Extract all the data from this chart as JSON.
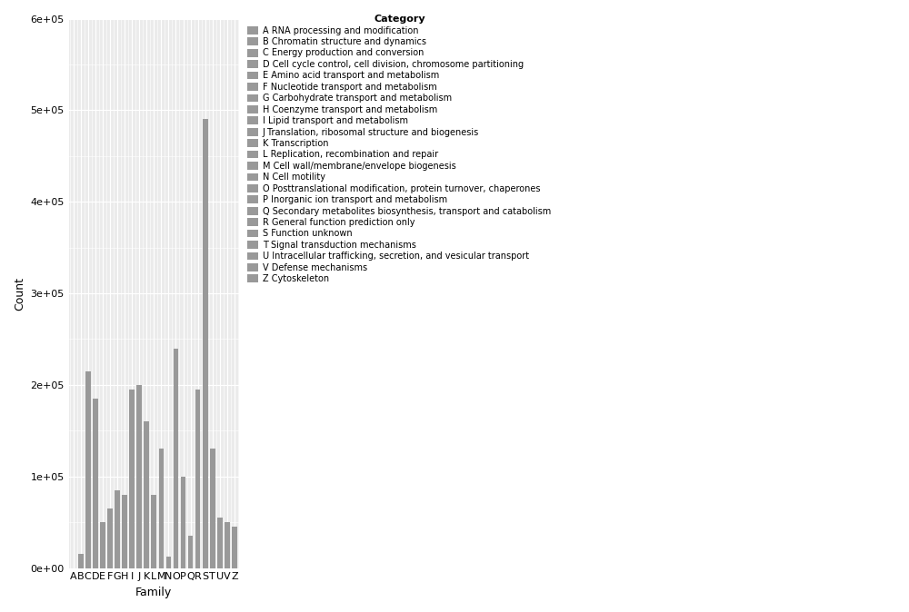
{
  "categories": [
    "A",
    "B",
    "C",
    "D",
    "E",
    "F",
    "G",
    "H",
    "I",
    "J",
    "K",
    "L",
    "M",
    "N",
    "O",
    "P",
    "Q",
    "R",
    "S",
    "T",
    "U",
    "V",
    "Z"
  ],
  "values": [
    0,
    15000,
    215000,
    185000,
    50000,
    65000,
    85000,
    80000,
    195000,
    200000,
    160000,
    80000,
    130000,
    12000,
    240000,
    100000,
    35000,
    195000,
    490000,
    130000,
    55000,
    50000,
    45000
  ],
  "bar_color": "#999999",
  "xlabel": "Family",
  "ylabel": "Count",
  "ylim": [
    0,
    600000
  ],
  "yticks": [
    0,
    100000,
    200000,
    300000,
    400000,
    500000,
    600000
  ],
  "ytick_labels": [
    "0e+00",
    "1e+05",
    "2e+05",
    "3e+05",
    "4e+05",
    "5e+05",
    "6e+05"
  ],
  "legend_title": "Category",
  "legend_entries": [
    "A RNA processing and modification",
    "B Chromatin structure and dynamics",
    "C Energy production and conversion",
    "D Cell cycle control, cell division, chromosome partitioning",
    "E Amino acid transport and metabolism",
    "F Nucleotide transport and metabolism",
    "G Carbohydrate transport and metabolism",
    "H Coenzyme transport and metabolism",
    "I Lipid transport and metabolism",
    "J Translation, ribosomal structure and biogenesis",
    "K Transcription",
    "L Replication, recombination and repair",
    "M Cell wall/membrane/envelope biogenesis",
    "N Cell motility",
    "O Posttranslational modification, protein turnover, chaperones",
    "P Inorganic ion transport and metabolism",
    "Q Secondary metabolites biosynthesis, transport and catabolism",
    "R General function prediction only",
    "S Function unknown",
    "T Signal transduction mechanisms",
    "U Intracellular trafficking, secretion, and vesicular transport",
    "V Defense mechanisms",
    "Z Cytoskeleton"
  ],
  "background_color": "#ffffff",
  "panel_bg_color": "#ebebeb",
  "grid_color": "#ffffff",
  "axis_fontsize": 8,
  "legend_fontsize": 7,
  "legend_title_fontsize": 8,
  "figsize": [
    10.0,
    6.74
  ],
  "dpi": 100
}
